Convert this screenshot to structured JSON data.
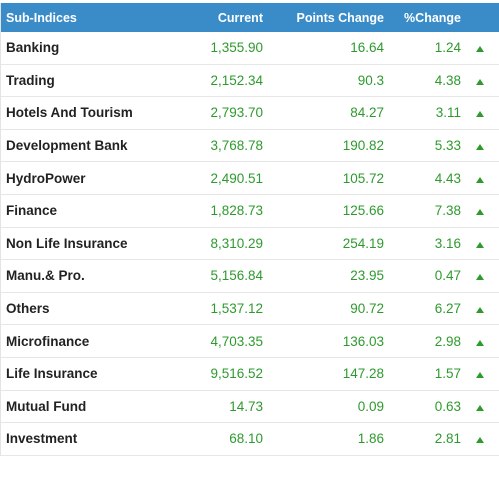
{
  "header": {
    "sub_indices": "Sub-Indices",
    "current": "Current",
    "points_change": "Points Change",
    "pct_change": "%Change"
  },
  "colors": {
    "header_bg": "#3a8cc9",
    "positive": "#2e9a2e"
  },
  "rows": [
    {
      "name": "Banking",
      "current": "1,355.90",
      "points": "16.64",
      "pct": "1.24",
      "trend": "up-arrow-icon"
    },
    {
      "name": "Trading",
      "current": "2,152.34",
      "points": "90.3",
      "pct": "4.38",
      "trend": "up-arrow-icon"
    },
    {
      "name": "Hotels And Tourism",
      "current": "2,793.70",
      "points": "84.27",
      "pct": "3.11",
      "trend": "up-arrow-icon"
    },
    {
      "name": "Development Bank",
      "current": "3,768.78",
      "points": "190.82",
      "pct": "5.33",
      "trend": "up-arrow-icon"
    },
    {
      "name": "HydroPower",
      "current": "2,490.51",
      "points": "105.72",
      "pct": "4.43",
      "trend": "up-arrow-icon"
    },
    {
      "name": "Finance",
      "current": "1,828.73",
      "points": "125.66",
      "pct": "7.38",
      "trend": "up-arrow-icon"
    },
    {
      "name": "Non Life Insurance",
      "current": "8,310.29",
      "points": "254.19",
      "pct": "3.16",
      "trend": "up-arrow-icon"
    },
    {
      "name": "Manu.& Pro.",
      "current": "5,156.84",
      "points": "23.95",
      "pct": "0.47",
      "trend": "up-arrow-icon"
    },
    {
      "name": "Others",
      "current": "1,537.12",
      "points": "90.72",
      "pct": "6.27",
      "trend": "up-arrow-icon"
    },
    {
      "name": "Microfinance",
      "current": "4,703.35",
      "points": "136.03",
      "pct": "2.98",
      "trend": "up-arrow-icon"
    },
    {
      "name": "Life Insurance",
      "current": "9,516.52",
      "points": "147.28",
      "pct": "1.57",
      "trend": "up-arrow-icon"
    },
    {
      "name": "Mutual Fund",
      "current": "14.73",
      "points": "0.09",
      "pct": "0.63",
      "trend": "up-arrow-icon"
    },
    {
      "name": "Investment",
      "current": "68.10",
      "points": "1.86",
      "pct": "2.81",
      "trend": "up-arrow-icon"
    }
  ]
}
